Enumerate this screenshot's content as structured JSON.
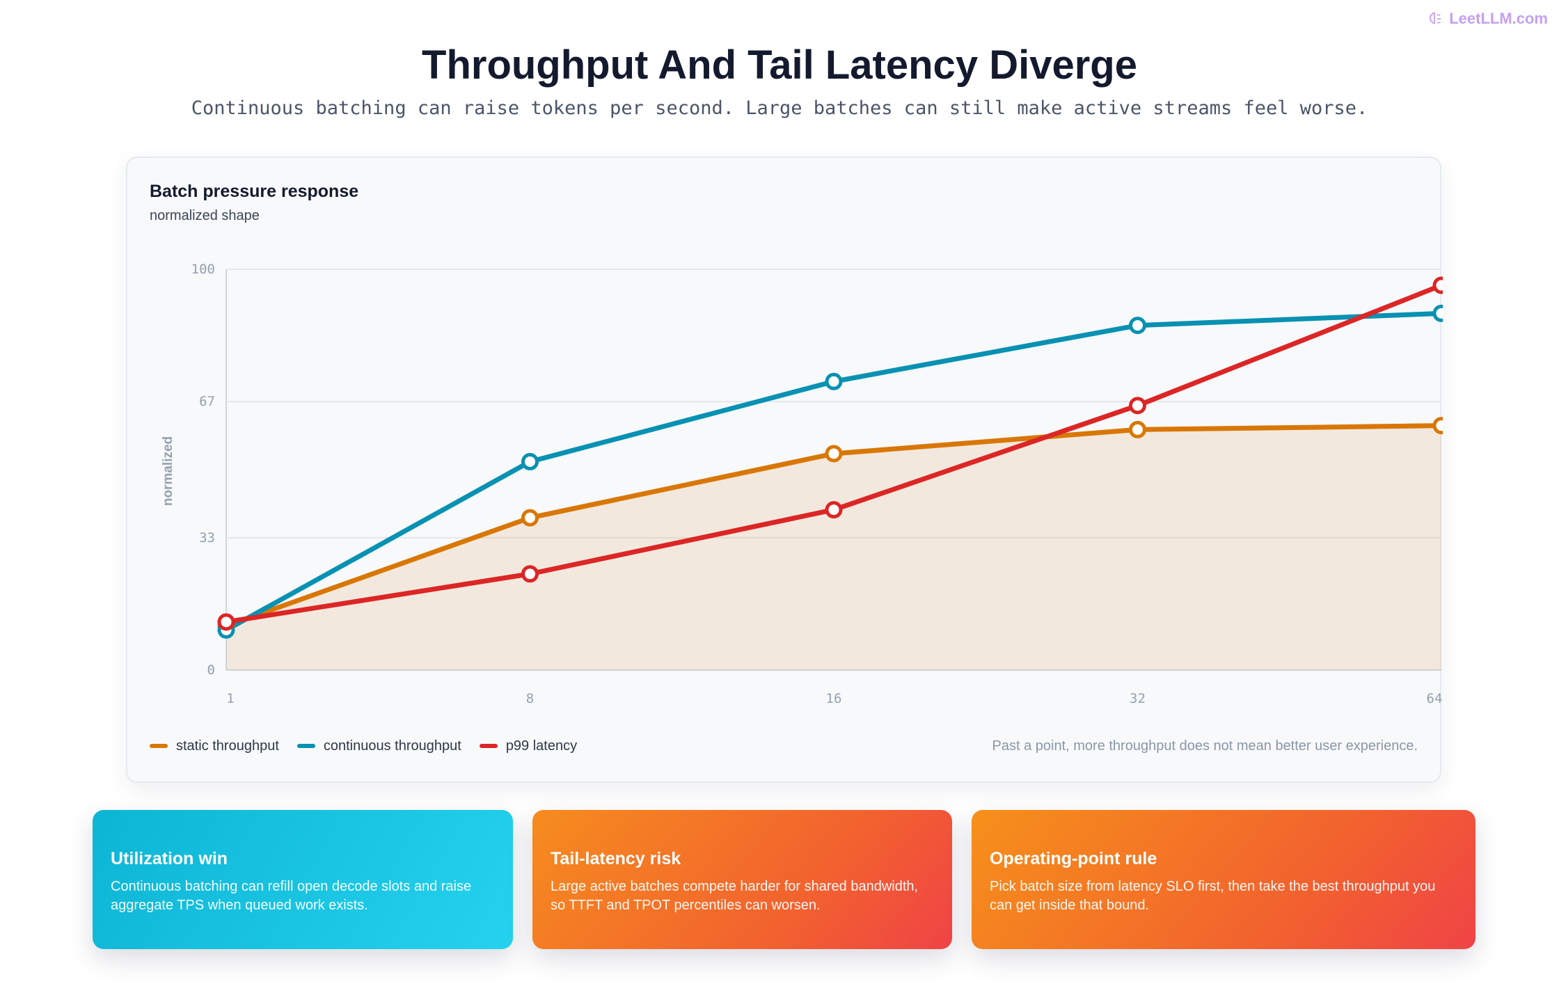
{
  "brand": {
    "label": "LeetLLM.com",
    "icon": "brain-icon"
  },
  "header": {
    "title": "Throughput And Tail Latency Diverge",
    "subtitle": "Continuous batching can raise tokens per second. Large batches can still make active streams feel worse."
  },
  "panel": {
    "title": "Batch pressure response",
    "subtitle": "normalized shape",
    "note": "Past a point, more throughput does not mean better user experience."
  },
  "chart_data": {
    "type": "line",
    "x": [
      "1",
      "8",
      "16",
      "32",
      "64"
    ],
    "ylabel": "normalized",
    "ylim": [
      0,
      100
    ],
    "yticks": [
      0,
      33,
      67,
      100
    ],
    "grid": true,
    "legend_position": "bottom-left",
    "series": [
      {
        "name": "static throughput",
        "color": "#d97706",
        "values": [
          11,
          38,
          54,
          60,
          61
        ],
        "area": true
      },
      {
        "name": "continuous throughput",
        "color": "#0891b2",
        "values": [
          10,
          52,
          72,
          86,
          89
        ]
      },
      {
        "name": "p99 latency",
        "color": "#dc2626",
        "values": [
          12,
          24,
          40,
          66,
          96
        ]
      }
    ]
  },
  "cards": [
    {
      "title": "Utilization win",
      "text": "Continuous batching can refill open decode slots and raise aggregate TPS when queued work exists."
    },
    {
      "title": "Tail-latency risk",
      "text": "Large active batches compete harder for shared bandwidth, so TTFT and TPOT percentiles can worsen."
    },
    {
      "title": "Operating-point rule",
      "text": "Pick batch size from latency SLO first, then take the best throughput you can get inside that bound."
    }
  ]
}
